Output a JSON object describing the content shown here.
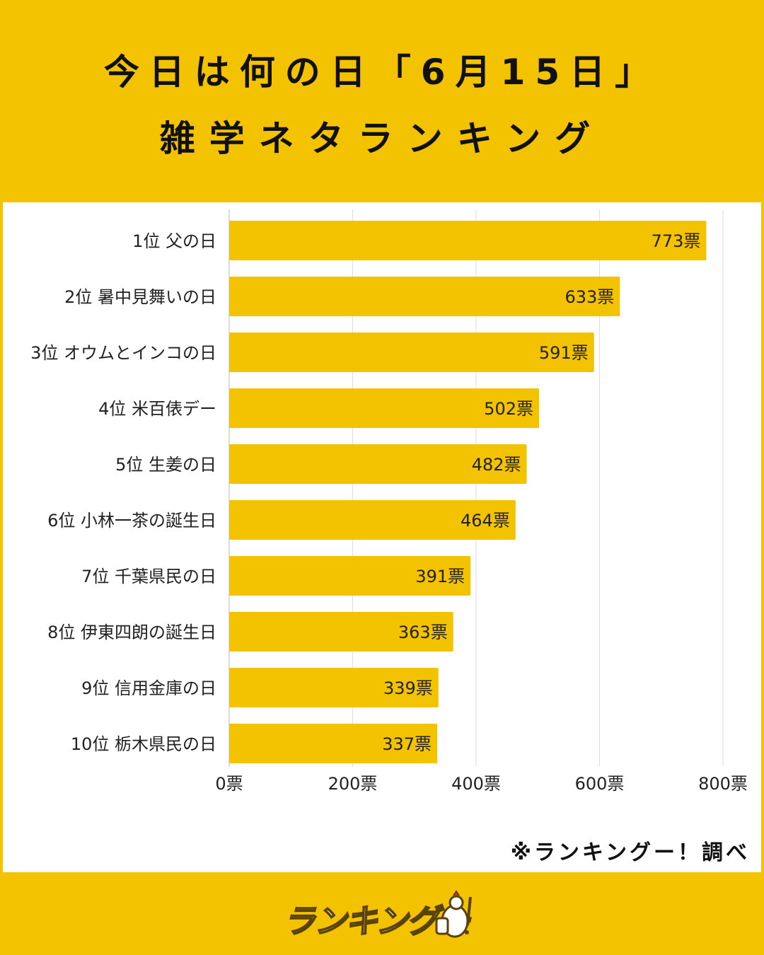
{
  "title": {
    "line1": "今日は何の日「6月15日」",
    "line2": "雑学ネタランキング"
  },
  "chart_data": {
    "type": "bar",
    "orientation": "horizontal",
    "categories": [
      "1位 父の日",
      "2位 暑中見舞いの日",
      "3位 オウムとインコの日",
      "4位 米百俵デー",
      "5位 生姜の日",
      "6位 小林一茶の誕生日",
      "7位 千葉県民の日",
      "8位 伊東四朗の誕生日",
      "9位 信用金庫の日",
      "10位 栃木県民の日"
    ],
    "values": [
      773,
      633,
      591,
      502,
      482,
      464,
      391,
      363,
      339,
      337
    ],
    "value_labels": [
      "773票",
      "633票",
      "591票",
      "502票",
      "482票",
      "464票",
      "391票",
      "363票",
      "339票",
      "337票"
    ],
    "x_ticks": [
      0,
      200,
      400,
      600,
      800
    ],
    "x_tick_labels": [
      "0票",
      "200票",
      "400票",
      "600票",
      "800票"
    ],
    "xlim": [
      0,
      800
    ],
    "grid": true,
    "bar_color": "#F3C200",
    "grid_color": "#DDDDDD"
  },
  "source_note": "※ランキングー！調べ",
  "logo": {
    "text": "ランキングー",
    "icon": "chicken-thumbs-up-icon"
  }
}
